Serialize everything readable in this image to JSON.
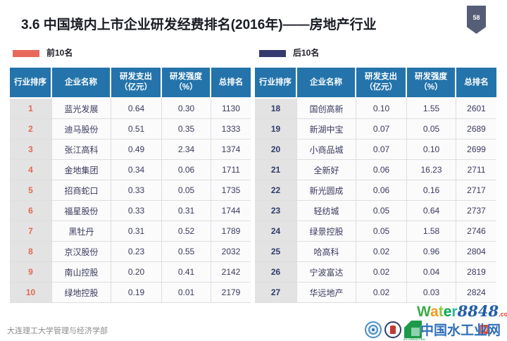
{
  "slide": {
    "title": "3.6  中国境内上市企业研发经费排名(2016年)——房地产行业",
    "page_number": "58",
    "footer_text": "大连理工大学管理与经济学部"
  },
  "legend": {
    "top10_label": "前10名",
    "top10_color": "#E8695A",
    "bottom10_label": "后10名",
    "bottom10_color": "#343A70"
  },
  "table": {
    "headers": [
      "行业排序",
      "企业名称",
      "研发支出\n（亿元）",
      "研发强度\n（%）",
      "总排名"
    ],
    "left_rows": [
      [
        "1",
        "蓝光发展",
        "0.64",
        "0.30",
        "1130"
      ],
      [
        "2",
        "迪马股份",
        "0.51",
        "0.35",
        "1333"
      ],
      [
        "3",
        "张江高科",
        "0.49",
        "2.34",
        "1374"
      ],
      [
        "4",
        "金地集团",
        "0.34",
        "0.06",
        "1711"
      ],
      [
        "5",
        "招商蛇口",
        "0.33",
        "0.05",
        "1735"
      ],
      [
        "6",
        "福星股份",
        "0.33",
        "0.31",
        "1744"
      ],
      [
        "7",
        "黑牡丹",
        "0.31",
        "0.52",
        "1789"
      ],
      [
        "8",
        "京汉股份",
        "0.23",
        "0.55",
        "2032"
      ],
      [
        "9",
        "南山控股",
        "0.20",
        "0.41",
        "2142"
      ],
      [
        "10",
        "绿地控股",
        "0.19",
        "0.01",
        "2179"
      ]
    ],
    "right_rows": [
      [
        "18",
        "国创高新",
        "0.10",
        "1.55",
        "2601"
      ],
      [
        "19",
        "新湖中宝",
        "0.07",
        "0.05",
        "2689"
      ],
      [
        "20",
        "小商品城",
        "0.07",
        "0.10",
        "2699"
      ],
      [
        "21",
        "全新好",
        "0.06",
        "16.23",
        "2711"
      ],
      [
        "22",
        "新光圆成",
        "0.06",
        "0.16",
        "2717"
      ],
      [
        "23",
        "轻纺城",
        "0.05",
        "0.64",
        "2737"
      ],
      [
        "24",
        "绿景控股",
        "0.05",
        "1.58",
        "2746"
      ],
      [
        "25",
        "哈高科",
        "0.02",
        "0.96",
        "2804"
      ],
      [
        "26",
        "宁波富达",
        "0.02",
        "0.04",
        "2819"
      ],
      [
        "27",
        "华远地产",
        "0.02",
        "0.03",
        "2824"
      ]
    ]
  },
  "colors": {
    "header_bg": "#2474AB",
    "rank_column_bg": "#E3E3E3",
    "rank_left_text": "#E2684F",
    "rank_right_text": "#303A6B"
  },
  "watermark": {
    "brand_letters": [
      "W",
      "a",
      "t",
      "e",
      "r"
    ],
    "brand_number": "8848",
    "brand_tld": ".com",
    "cn_text": "中国水工业网",
    "equis_label": "EQ",
    "accredited_label": "ACCREDITED"
  }
}
